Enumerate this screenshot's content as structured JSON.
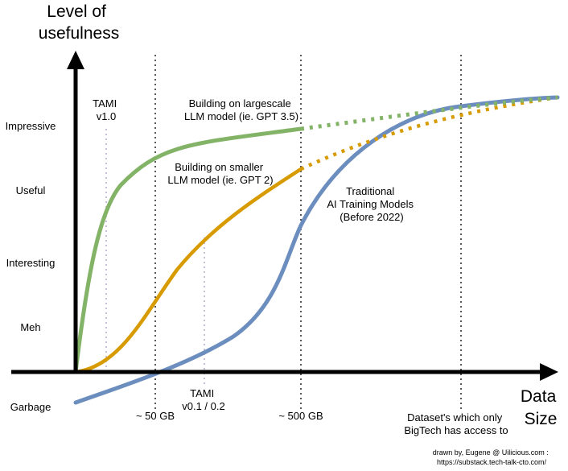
{
  "axes": {
    "y_title_lines": [
      "Level of",
      "usefulness"
    ],
    "x_title_lines": [
      "Data",
      "Size"
    ]
  },
  "y_levels": [
    "Impressive",
    "Useful",
    "Interesting",
    "Meh",
    "Garbage"
  ],
  "x_markers": [
    "~ 50 GB",
    "~ 500 GB"
  ],
  "x_note_lines": [
    "Dataset's which only",
    "BigTech has access to"
  ],
  "tami_top_lines": [
    "TAMI",
    "v1.0"
  ],
  "tami_bottom_lines": [
    "TAMI",
    "v0.1 / 0.2"
  ],
  "curves": {
    "large": {
      "lines": [
        "Building on largescale",
        "LLM model (ie. GPT 3.5)"
      ],
      "color": "#82b366"
    },
    "small": {
      "lines": [
        "Building on smaller",
        "LLM model (ie. GPT 2)"
      ],
      "color": "#d79b00"
    },
    "traditional": {
      "lines": [
        "Traditional",
        "AI Training Models",
        "(Before 2022)"
      ],
      "color": "#6c8ebf"
    }
  },
  "credit_lines": [
    "drawn by, Eugene @ Uilicious.com :",
    "https://substack.tech-talk-cto.com/"
  ]
}
